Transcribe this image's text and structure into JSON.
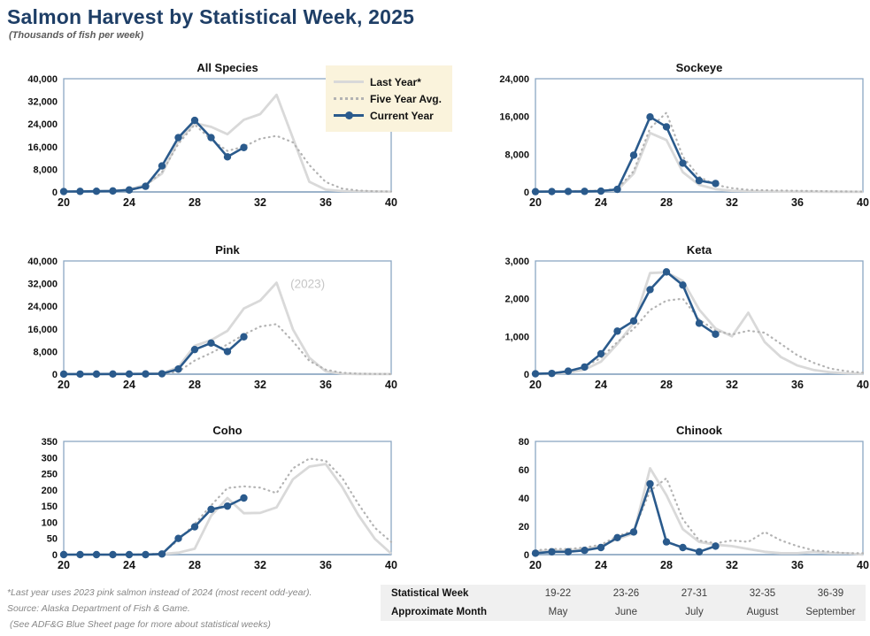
{
  "header": {
    "title": "Salmon Harvest by Statistical Week, 2025",
    "subtitle": "(Thousands of fish per week)"
  },
  "colors": {
    "title": "#1e3e66",
    "current_year": "#2a5a8c",
    "last_year": "#d9d9d9",
    "five_year_avg": "#b3b3b3",
    "plot_border": "#8ca7c2",
    "axis_line": "#9cb3ca",
    "legend_bg": "#faf3dc",
    "annotation_gray": "#c6c6c6"
  },
  "legend": {
    "items": [
      {
        "label": "Last Year*",
        "style": "solid-gray"
      },
      {
        "label": "Five Year Avg.",
        "style": "dotted-gray"
      },
      {
        "label": "Current Year",
        "style": "solid-blue-marker"
      }
    ]
  },
  "chart_data": [
    {
      "type": "line",
      "title": "All Species",
      "ylim": [
        0,
        40000
      ],
      "yticks": [
        0,
        8000,
        16000,
        24000,
        32000,
        40000
      ],
      "xticks": [
        20,
        24,
        28,
        32,
        36,
        40
      ],
      "x_range": [
        20,
        40
      ],
      "series": [
        {
          "name": "Last Year*",
          "role": "last_year",
          "x_start": 20,
          "values": [
            200,
            250,
            300,
            400,
            900,
            2500,
            6500,
            18000,
            24300,
            23000,
            20400,
            25500,
            27500,
            34300,
            19000,
            3600,
            800,
            300,
            200,
            150,
            100
          ]
        },
        {
          "name": "Five Year Avg.",
          "role": "five_year_avg",
          "x_start": 20,
          "values": [
            150,
            200,
            250,
            350,
            800,
            2200,
            7000,
            17000,
            23800,
            18500,
            14500,
            16000,
            18800,
            19800,
            17500,
            9500,
            3500,
            1200,
            500,
            250,
            150
          ]
        },
        {
          "name": "Current Year",
          "role": "current_year",
          "x_start": 20,
          "values": [
            150,
            200,
            250,
            350,
            700,
            2000,
            9200,
            19200,
            25300,
            19200,
            12400,
            15700
          ]
        }
      ]
    },
    {
      "type": "line",
      "title": "Sockeye",
      "ylim": [
        0,
        24000
      ],
      "yticks": [
        0,
        8000,
        16000,
        24000
      ],
      "xticks": [
        20,
        24,
        28,
        32,
        36,
        40
      ],
      "x_range": [
        20,
        40
      ],
      "series": [
        {
          "name": "Last Year*",
          "role": "last_year",
          "x_start": 20,
          "values": [
            100,
            120,
            150,
            180,
            250,
            400,
            3900,
            12500,
            11000,
            4200,
            1500,
            600,
            250,
            150,
            100,
            80,
            60,
            50,
            40,
            30,
            20
          ]
        },
        {
          "name": "Five Year Avg.",
          "role": "five_year_avg",
          "x_start": 20,
          "values": [
            100,
            120,
            150,
            200,
            300,
            650,
            4400,
            13500,
            16800,
            7500,
            3200,
            1500,
            800,
            450,
            350,
            300,
            250,
            200,
            150,
            120,
            100
          ]
        },
        {
          "name": "Current Year",
          "role": "current_year",
          "x_start": 20,
          "values": [
            60,
            80,
            100,
            120,
            180,
            550,
            7800,
            15900,
            13800,
            6100,
            2400,
            1800
          ]
        }
      ]
    },
    {
      "type": "line",
      "title": "Pink",
      "ylim": [
        0,
        40000
      ],
      "yticks": [
        0,
        8000,
        16000,
        24000,
        32000,
        40000
      ],
      "xticks": [
        20,
        24,
        28,
        32,
        36,
        40
      ],
      "x_range": [
        20,
        40
      ],
      "annotation": {
        "text": "(2023)",
        "week": 34.9,
        "value": 30500
      },
      "series": [
        {
          "name": "Last Year*",
          "role": "last_year",
          "x_start": 20,
          "values": [
            30,
            40,
            50,
            60,
            80,
            100,
            300,
            2500,
            10000,
            12000,
            15300,
            23200,
            26000,
            32300,
            15800,
            5800,
            1000,
            150,
            50,
            30,
            20
          ]
        },
        {
          "name": "Five Year Avg.",
          "role": "five_year_avg",
          "x_start": 20,
          "values": [
            20,
            30,
            40,
            50,
            60,
            80,
            200,
            900,
            4800,
            7500,
            10500,
            14000,
            16800,
            17700,
            11600,
            4700,
            1600,
            500,
            200,
            100,
            50
          ]
        },
        {
          "name": "Current Year",
          "role": "current_year",
          "x_start": 20,
          "values": [
            30,
            30,
            40,
            50,
            60,
            80,
            150,
            1800,
            8700,
            11000,
            8000,
            13200
          ]
        }
      ]
    },
    {
      "type": "line",
      "title": "Keta",
      "ylim": [
        0,
        3000
      ],
      "yticks": [
        0,
        1000,
        2000,
        3000
      ],
      "xticks": [
        20,
        24,
        28,
        32,
        36,
        40
      ],
      "x_range": [
        20,
        40
      ],
      "series": [
        {
          "name": "Last Year*",
          "role": "last_year",
          "x_start": 20,
          "values": [
            5,
            10,
            40,
            120,
            330,
            800,
            1350,
            2680,
            2700,
            2470,
            1710,
            1210,
            1000,
            1630,
            850,
            450,
            230,
            110,
            50,
            20,
            10
          ]
        },
        {
          "name": "Five Year Avg.",
          "role": "five_year_avg",
          "x_start": 20,
          "values": [
            5,
            15,
            60,
            200,
            430,
            850,
            1200,
            1700,
            1950,
            2000,
            1450,
            1150,
            1050,
            1150,
            1100,
            800,
            500,
            300,
            150,
            80,
            40
          ]
        },
        {
          "name": "Current Year",
          "role": "current_year",
          "x_start": 20,
          "values": [
            10,
            20,
            80,
            190,
            540,
            1140,
            1410,
            2240,
            2710,
            2360,
            1350,
            1060
          ]
        }
      ]
    },
    {
      "type": "line",
      "title": "Coho",
      "ylim": [
        0,
        350
      ],
      "yticks": [
        0,
        50,
        100,
        150,
        200,
        250,
        300,
        350
      ],
      "xticks": [
        20,
        24,
        28,
        32,
        36,
        40
      ],
      "x_range": [
        20,
        40
      ],
      "series": [
        {
          "name": "Last Year*",
          "role": "last_year",
          "x_start": 20,
          "values": [
            0,
            0,
            0,
            0,
            0,
            1,
            2,
            6,
            18,
            120,
            175,
            128,
            129,
            146,
            233,
            272,
            280,
            210,
            122,
            49,
            3
          ]
        },
        {
          "name": "Five Year Avg.",
          "role": "five_year_avg",
          "x_start": 20,
          "values": [
            0,
            0,
            0,
            0,
            0,
            1,
            3,
            45,
            95,
            152,
            206,
            211,
            207,
            190,
            267,
            297,
            290,
            238,
            156,
            83,
            39
          ]
        },
        {
          "name": "Current Year",
          "role": "current_year",
          "x_start": 20,
          "values": [
            0,
            0,
            0,
            0,
            0,
            0,
            2,
            50,
            86,
            140,
            150,
            175
          ]
        }
      ]
    },
    {
      "type": "line",
      "title": "Chinook",
      "ylim": [
        0,
        80
      ],
      "yticks": [
        0,
        20,
        40,
        60,
        80
      ],
      "xticks": [
        20,
        24,
        28,
        32,
        36,
        40
      ],
      "x_range": [
        20,
        40
      ],
      "series": [
        {
          "name": "Last Year*",
          "role": "last_year",
          "x_start": 20,
          "values": [
            2,
            3,
            3,
            4,
            6,
            11,
            15,
            61,
            42,
            18,
            9,
            7,
            6,
            4,
            2,
            1,
            1,
            2,
            1,
            1,
            0
          ]
        },
        {
          "name": "Five Year Avg.",
          "role": "five_year_avg",
          "x_start": 20,
          "values": [
            3,
            4,
            4,
            5,
            7,
            13,
            17,
            45,
            54,
            25,
            10,
            8,
            10,
            9,
            16,
            10,
            6,
            3,
            2,
            1,
            1
          ]
        },
        {
          "name": "Current Year",
          "role": "current_year",
          "x_start": 20,
          "values": [
            1,
            2,
            2,
            3,
            5,
            12,
            16,
            50,
            9,
            5,
            2,
            6
          ]
        }
      ]
    }
  ],
  "footnotes": [
    "*Last year uses 2023 pink salmon instead of 2024 (most recent odd-year).",
    "Source: Alaska Department of Fish & Game.",
    "(See ADF&G Blue Sheet page for more about statistical weeks)"
  ],
  "week_table": {
    "rows": [
      {
        "label": "Statistical Week",
        "values": [
          "19-22",
          "23-26",
          "27-31",
          "32-35",
          "36-39"
        ]
      },
      {
        "label": "Approximate Month",
        "values": [
          "May",
          "June",
          "July",
          "August",
          "September"
        ]
      }
    ]
  }
}
